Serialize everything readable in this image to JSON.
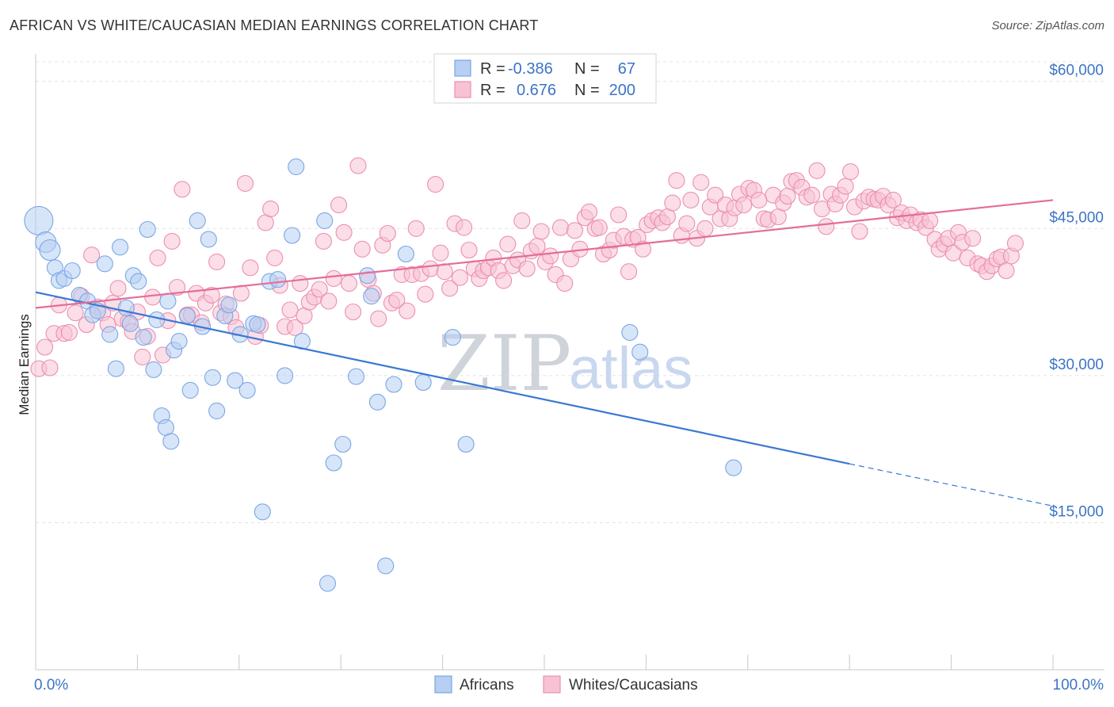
{
  "title": "AFRICAN VS WHITE/CAUCASIAN MEDIAN EARNINGS CORRELATION CHART",
  "source": "Source: ZipAtlas.com",
  "watermark": {
    "zip": "ZIP",
    "atlas": "atlas"
  },
  "legend": {
    "r_label": "R =",
    "n_label": "N =",
    "rows": [
      {
        "series": "Africans",
        "r": "-0.386",
        "n": "67",
        "color": "#7aa6e6",
        "fill": "#b6cff2"
      },
      {
        "series": "Whites/Caucasians",
        "r": "0.676",
        "n": "200",
        "color": "#ec8fb0",
        "fill": "#f7c3d4"
      }
    ]
  },
  "colors": {
    "blue_line": "#3a78d4",
    "pink_line": "#e46d99",
    "axis_text": "#3d74c6",
    "grid": "#dddddd"
  },
  "chart_data": {
    "type": "scatter",
    "title": "AFRICAN VS WHITE/CAUCASIAN MEDIAN EARNINGS CORRELATION CHART",
    "xlabel": "",
    "ylabel": "Median Earnings",
    "xlim": [
      0,
      100
    ],
    "ylim": [
      0,
      62000
    ],
    "x_tick_labels": [
      "0.0%",
      "100.0%"
    ],
    "y_ticks": [
      15000,
      30000,
      45000,
      60000
    ],
    "y_tick_labels": [
      "$15,000",
      "$30,000",
      "$45,000",
      "$60,000"
    ],
    "grid": true,
    "legend_position": "top-center",
    "series": [
      {
        "name": "Africans",
        "r": -0.386,
        "n": 67,
        "trend": {
          "x0": 0,
          "y0": 38500,
          "x1": 80,
          "y1": 21000,
          "dashed_to_x": 100,
          "dashed_to_y": 16700
        },
        "points": [
          [
            0.3,
            45800,
            "L"
          ],
          [
            1.0,
            43600,
            "M"
          ],
          [
            1.4,
            42800,
            "M"
          ],
          [
            1.9,
            41000
          ],
          [
            2.3,
            39700
          ],
          [
            2.8,
            39900
          ],
          [
            3.6,
            40700
          ],
          [
            4.3,
            38200
          ],
          [
            5.1,
            37600
          ],
          [
            5.6,
            36200
          ],
          [
            6.1,
            36600
          ],
          [
            6.8,
            41400
          ],
          [
            7.3,
            34200
          ],
          [
            7.9,
            30700
          ],
          [
            8.3,
            43100
          ],
          [
            8.9,
            36900
          ],
          [
            9.3,
            35300
          ],
          [
            9.6,
            40200
          ],
          [
            10.1,
            39600
          ],
          [
            10.6,
            33900
          ],
          [
            11.0,
            44900
          ],
          [
            11.6,
            30600
          ],
          [
            11.9,
            35700
          ],
          [
            12.4,
            25900
          ],
          [
            12.8,
            24700
          ],
          [
            13.3,
            23300
          ],
          [
            13.6,
            32600
          ],
          [
            14.1,
            33500
          ],
          [
            14.9,
            36100
          ],
          [
            15.2,
            28500
          ],
          [
            15.9,
            45800
          ],
          [
            16.4,
            35000
          ],
          [
            17.0,
            43900
          ],
          [
            17.4,
            29800
          ],
          [
            17.8,
            26400
          ],
          [
            18.6,
            36100
          ],
          [
            19.0,
            37200
          ],
          [
            19.6,
            29500
          ],
          [
            20.1,
            34200
          ],
          [
            20.8,
            28500
          ],
          [
            21.4,
            35300
          ],
          [
            21.8,
            35200
          ],
          [
            22.3,
            16100
          ],
          [
            23.0,
            39600
          ],
          [
            23.8,
            39800
          ],
          [
            24.5,
            30000
          ],
          [
            25.2,
            44300
          ],
          [
            25.6,
            51300
          ],
          [
            26.2,
            33500
          ],
          [
            28.4,
            45800
          ],
          [
            29.3,
            21100
          ],
          [
            30.2,
            23000
          ],
          [
            31.5,
            29900
          ],
          [
            32.6,
            40200
          ],
          [
            33.0,
            38100
          ],
          [
            33.6,
            27300
          ],
          [
            34.4,
            10600
          ],
          [
            35.2,
            29100
          ],
          [
            28.7,
            8800
          ],
          [
            36.4,
            42400
          ],
          [
            38.1,
            29300
          ],
          [
            41.0,
            33900
          ],
          [
            42.3,
            23000
          ],
          [
            58.4,
            34400
          ],
          [
            59.4,
            32400
          ],
          [
            68.6,
            20600
          ],
          [
            13.0,
            37600
          ]
        ]
      },
      {
        "name": "Whites/Caucasians",
        "r": 0.676,
        "n": 200,
        "trend": {
          "x0": 0,
          "y0": 36900,
          "x1": 100,
          "y1": 47900
        },
        "points": [
          [
            0.3,
            30700
          ],
          [
            0.9,
            32900
          ],
          [
            1.4,
            30800
          ],
          [
            1.8,
            34300
          ],
          [
            2.3,
            37200
          ],
          [
            2.8,
            34300
          ],
          [
            3.3,
            34400
          ],
          [
            3.9,
            36400
          ],
          [
            4.5,
            38100
          ],
          [
            5.0,
            35200
          ],
          [
            5.5,
            42300
          ],
          [
            6.1,
            37000
          ],
          [
            6.6,
            36400
          ],
          [
            7.1,
            35200
          ],
          [
            7.6,
            37400
          ],
          [
            8.1,
            38900
          ],
          [
            8.5,
            35800
          ],
          [
            9.1,
            35500
          ],
          [
            9.5,
            34500
          ],
          [
            10.0,
            36500
          ],
          [
            10.5,
            31900
          ],
          [
            11.0,
            34000
          ],
          [
            11.5,
            38000
          ],
          [
            12.0,
            42000
          ],
          [
            12.5,
            32100
          ],
          [
            13.0,
            35600
          ],
          [
            13.4,
            43700
          ],
          [
            13.9,
            39000
          ],
          [
            14.4,
            49000
          ],
          [
            14.9,
            36200
          ],
          [
            15.3,
            36200
          ],
          [
            15.8,
            38400
          ],
          [
            16.3,
            35400
          ],
          [
            16.7,
            37400
          ],
          [
            17.3,
            38200
          ],
          [
            17.8,
            41600
          ],
          [
            18.2,
            36400
          ],
          [
            18.7,
            37300
          ],
          [
            19.2,
            36000
          ],
          [
            19.7,
            34900
          ],
          [
            20.2,
            38400
          ],
          [
            20.6,
            49600
          ],
          [
            21.1,
            41000
          ],
          [
            21.6,
            34000
          ],
          [
            22.1,
            35100
          ],
          [
            22.6,
            45600
          ],
          [
            23.1,
            47000
          ],
          [
            23.5,
            42000
          ],
          [
            24.0,
            39200
          ],
          [
            24.5,
            35000
          ],
          [
            25.0,
            36700
          ],
          [
            25.5,
            34900
          ],
          [
            26.0,
            39400
          ],
          [
            26.4,
            36100
          ],
          [
            26.9,
            37500
          ],
          [
            27.4,
            38000
          ],
          [
            27.9,
            38800
          ],
          [
            28.3,
            43700
          ],
          [
            28.8,
            37600
          ],
          [
            29.3,
            39900
          ],
          [
            29.8,
            47400
          ],
          [
            30.3,
            44600
          ],
          [
            30.8,
            39400
          ],
          [
            31.2,
            36500
          ],
          [
            31.7,
            51400
          ],
          [
            32.1,
            42900
          ],
          [
            32.7,
            39800
          ],
          [
            33.2,
            38400
          ],
          [
            33.7,
            35800
          ],
          [
            34.1,
            43300
          ],
          [
            34.6,
            44500
          ],
          [
            35.0,
            37400
          ],
          [
            35.5,
            37700
          ],
          [
            36.0,
            40300
          ],
          [
            36.5,
            36600
          ],
          [
            37.0,
            40300
          ],
          [
            37.4,
            45000
          ],
          [
            37.9,
            40400
          ],
          [
            38.3,
            38300
          ],
          [
            38.8,
            40900
          ],
          [
            39.3,
            49500
          ],
          [
            39.8,
            42500
          ],
          [
            40.2,
            40600
          ],
          [
            40.7,
            38900
          ],
          [
            41.2,
            45500
          ],
          [
            41.7,
            40000
          ],
          [
            42.1,
            45100
          ],
          [
            42.6,
            42800
          ],
          [
            43.1,
            40900
          ],
          [
            43.6,
            39900
          ],
          [
            44.0,
            40700
          ],
          [
            44.5,
            41000
          ],
          [
            45.0,
            42000
          ],
          [
            45.5,
            40700
          ],
          [
            46.0,
            39700
          ],
          [
            46.4,
            43400
          ],
          [
            46.9,
            41200
          ],
          [
            47.4,
            41800
          ],
          [
            47.8,
            45800
          ],
          [
            48.3,
            40900
          ],
          [
            48.7,
            42700
          ],
          [
            49.3,
            43200
          ],
          [
            49.7,
            44700
          ],
          [
            50.1,
            41600
          ],
          [
            50.6,
            42200
          ],
          [
            51.1,
            40300
          ],
          [
            51.6,
            45100
          ],
          [
            52.0,
            39400
          ],
          [
            52.6,
            41900
          ],
          [
            53.0,
            44800
          ],
          [
            53.5,
            42900
          ],
          [
            54.0,
            46100
          ],
          [
            54.4,
            46700
          ],
          [
            55.0,
            45000
          ],
          [
            55.4,
            45100
          ],
          [
            55.8,
            42400
          ],
          [
            56.4,
            42800
          ],
          [
            56.8,
            43800
          ],
          [
            57.3,
            46400
          ],
          [
            57.8,
            44200
          ],
          [
            58.3,
            40600
          ],
          [
            58.7,
            43900
          ],
          [
            59.2,
            44100
          ],
          [
            59.7,
            42900
          ],
          [
            60.1,
            45400
          ],
          [
            60.6,
            45800
          ],
          [
            61.2,
            46100
          ],
          [
            61.6,
            45600
          ],
          [
            62.1,
            46200
          ],
          [
            62.6,
            47600
          ],
          [
            63.0,
            49900
          ],
          [
            63.5,
            44300
          ],
          [
            64.0,
            45500
          ],
          [
            64.4,
            47900
          ],
          [
            65.0,
            44000
          ],
          [
            65.4,
            49700
          ],
          [
            65.8,
            45000
          ],
          [
            66.3,
            47200
          ],
          [
            66.8,
            48400
          ],
          [
            67.3,
            46000
          ],
          [
            67.8,
            47400
          ],
          [
            68.2,
            46000
          ],
          [
            68.7,
            47100
          ],
          [
            69.2,
            48500
          ],
          [
            69.6,
            47400
          ],
          [
            70.1,
            49100
          ],
          [
            70.6,
            48900
          ],
          [
            71.1,
            47900
          ],
          [
            71.6,
            46000
          ],
          [
            72.0,
            45900
          ],
          [
            72.5,
            48400
          ],
          [
            73.0,
            46200
          ],
          [
            73.5,
            47600
          ],
          [
            73.9,
            48300
          ],
          [
            74.3,
            49800
          ],
          [
            74.8,
            49900
          ],
          [
            75.3,
            49200
          ],
          [
            75.8,
            48200
          ],
          [
            76.3,
            48400
          ],
          [
            76.8,
            50900
          ],
          [
            77.3,
            47000
          ],
          [
            77.7,
            45200
          ],
          [
            78.2,
            48500
          ],
          [
            78.6,
            47500
          ],
          [
            79.1,
            48400
          ],
          [
            79.6,
            49300
          ],
          [
            80.1,
            50800
          ],
          [
            80.5,
            47200
          ],
          [
            81.0,
            44700
          ],
          [
            81.4,
            47800
          ],
          [
            81.9,
            48200
          ],
          [
            82.4,
            48000
          ],
          [
            82.8,
            47900
          ],
          [
            83.3,
            48300
          ],
          [
            83.8,
            47400
          ],
          [
            84.3,
            47900
          ],
          [
            84.7,
            46100
          ],
          [
            85.1,
            46600
          ],
          [
            85.6,
            45800
          ],
          [
            86.0,
            46400
          ],
          [
            86.6,
            45600
          ],
          [
            87.0,
            45900
          ],
          [
            87.5,
            45100
          ],
          [
            87.9,
            45800
          ],
          [
            88.4,
            43900
          ],
          [
            88.8,
            42900
          ],
          [
            89.3,
            43400
          ],
          [
            89.7,
            44000
          ],
          [
            90.2,
            42500
          ],
          [
            90.7,
            44600
          ],
          [
            91.1,
            43600
          ],
          [
            91.6,
            42000
          ],
          [
            92.1,
            44000
          ],
          [
            92.6,
            41400
          ],
          [
            93.0,
            41200
          ],
          [
            93.5,
            40600
          ],
          [
            94.0,
            41200
          ],
          [
            94.5,
            41900
          ],
          [
            94.9,
            42100
          ],
          [
            95.4,
            40700
          ],
          [
            95.9,
            42200
          ],
          [
            96.3,
            43500
          ]
        ]
      }
    ]
  },
  "bottom_legend": [
    "Africans",
    "Whites/Caucasians"
  ]
}
